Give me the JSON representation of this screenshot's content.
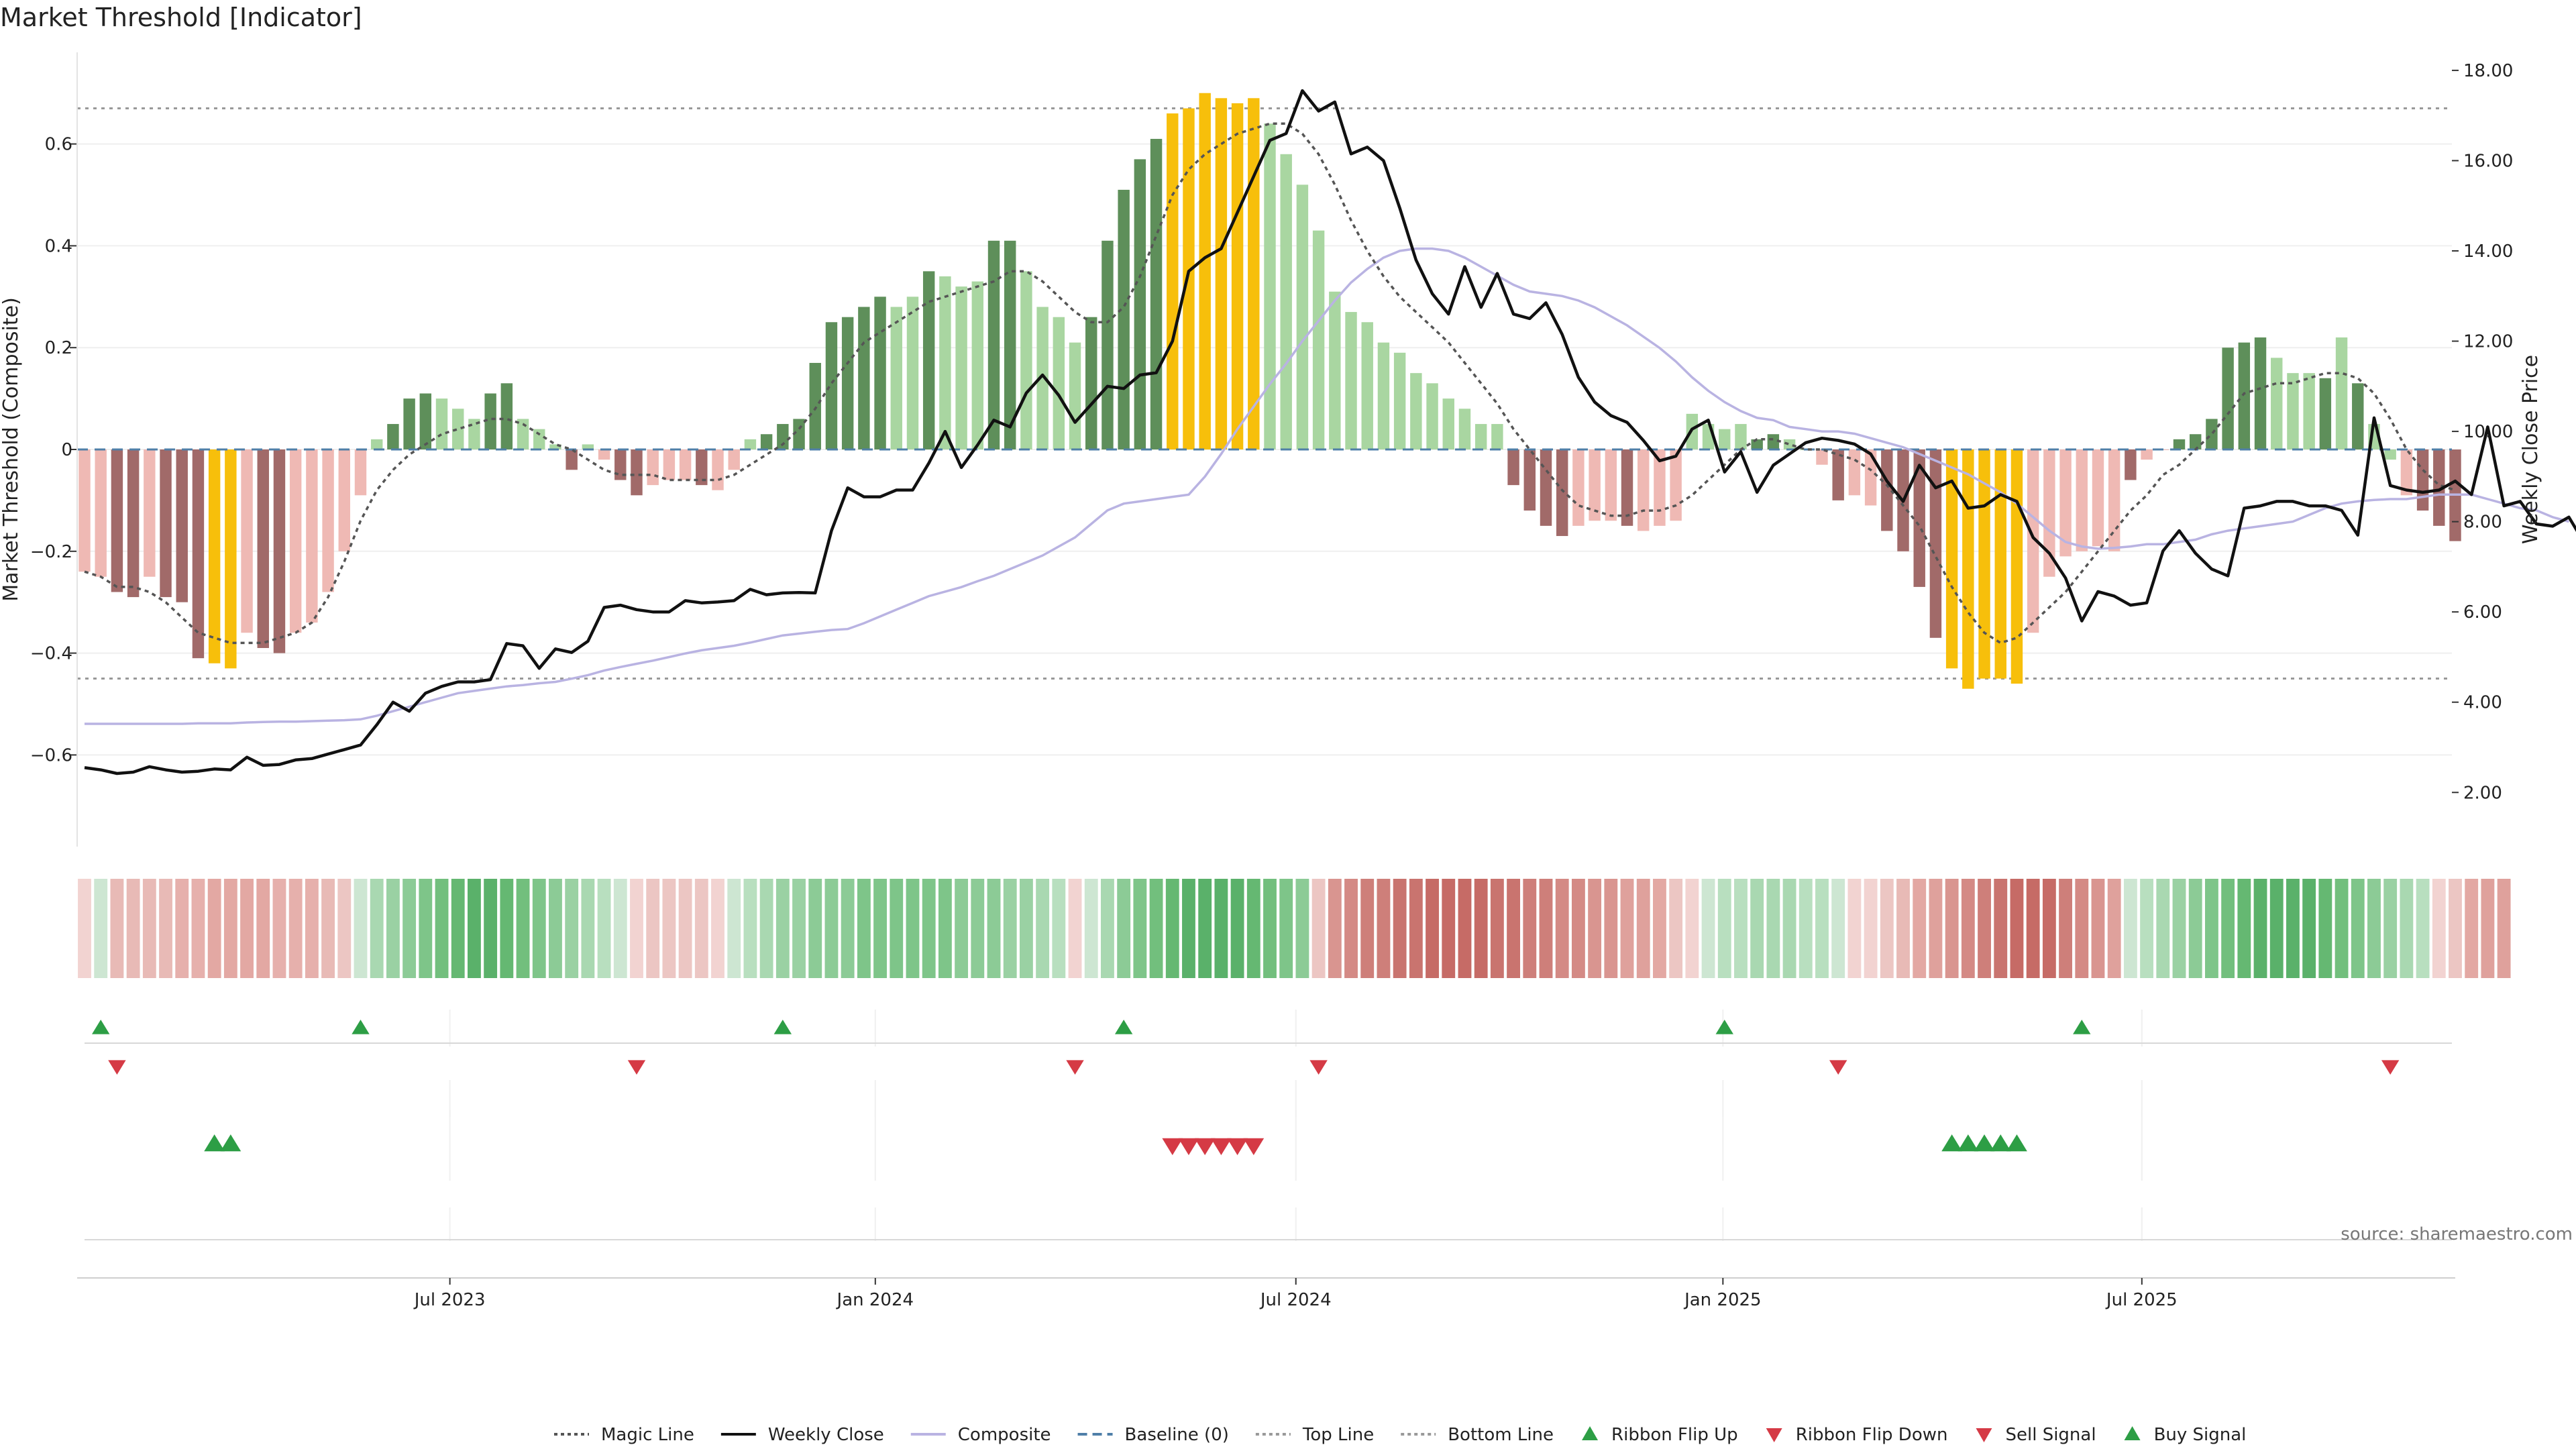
{
  "page": {
    "title": "Market Threshold [Indicator]",
    "source": "source: sharemaestro.com"
  },
  "chart_data": {
    "type": "bar",
    "title": "Market Threshold [Indicator]",
    "ylabel_left": "Market Threshold (Composite)",
    "ylabel_right": "Weekly Close Price",
    "ylim_left": [
      -0.78,
      0.78
    ],
    "ylim_right": [
      0.8,
      18.4
    ],
    "yticks_left": [
      -0.6,
      -0.4,
      -0.2,
      0,
      0.2,
      0.4,
      0.6
    ],
    "yticks_right": [
      2.0,
      4.0,
      6.0,
      8.0,
      10.0,
      12.0,
      14.0,
      16.0,
      18.0
    ],
    "yticks_left_labels": [
      "−0.6",
      "−0.4",
      "−0.2",
      "0",
      "0.2",
      "0.4",
      "0.6"
    ],
    "yticks_right_labels": [
      "2.00",
      "4.00",
      "6.00",
      "8.00",
      "10.00",
      "12.00",
      "14.00",
      "16.00",
      "18.00"
    ],
    "xticks": [
      {
        "label": "Jul 2023",
        "index": 22.5
      },
      {
        "label": "Jan 2024",
        "index": 48.7
      },
      {
        "label": "Jul 2024",
        "index": 74.6
      },
      {
        "label": "Jan 2025",
        "index": 100.9
      },
      {
        "label": "Jul 2025",
        "index": 126.7
      }
    ],
    "top_line": 0.67,
    "bottom_line": -0.45,
    "baseline": 0,
    "colors": {
      "pos_strong": "#5e8f5a",
      "pos_weak": "#a9d6a1",
      "neg_strong": "#a16a69",
      "neg_weak": "#efb9b4",
      "extreme": "#f7bf0b",
      "magic": "#555555",
      "close": "#111111",
      "composite": "#b9b3e2",
      "baseline": "#4f7fa8",
      "threshold": "#888888",
      "buy": "#2d9e45",
      "sell": "#d53a45"
    },
    "bars": [
      -0.24,
      -0.25,
      -0.28,
      -0.29,
      -0.25,
      -0.29,
      -0.3,
      -0.41,
      -0.42,
      -0.43,
      -0.36,
      -0.39,
      -0.4,
      -0.36,
      -0.34,
      -0.28,
      -0.2,
      -0.09,
      0.02,
      0.05,
      0.1,
      0.11,
      0.1,
      0.08,
      0.06,
      0.11,
      0.13,
      0.06,
      0.04,
      0.01,
      -0.04,
      0.01,
      -0.02,
      -0.06,
      -0.09,
      -0.07,
      -0.06,
      -0.06,
      -0.07,
      -0.08,
      -0.04,
      0.02,
      0.03,
      0.05,
      0.06,
      0.17,
      0.25,
      0.26,
      0.28,
      0.3,
      0.28,
      0.3,
      0.35,
      0.34,
      0.32,
      0.33,
      0.41,
      0.41,
      0.35,
      0.28,
      0.26,
      0.21,
      0.26,
      0.41,
      0.51,
      0.57,
      0.61,
      0.66,
      0.67,
      0.7,
      0.69,
      0.68,
      0.69,
      0.64,
      0.58,
      0.52,
      0.43,
      0.31,
      0.27,
      0.25,
      0.21,
      0.19,
      0.15,
      0.13,
      0.1,
      0.08,
      0.05,
      0.05,
      -0.07,
      -0.12,
      -0.15,
      -0.17,
      -0.15,
      -0.14,
      -0.14,
      -0.15,
      -0.16,
      -0.15,
      -0.14,
      0.07,
      0.05,
      0.04,
      0.05,
      0.02,
      0.03,
      0.02,
      0.0,
      -0.03,
      -0.1,
      -0.09,
      -0.11,
      -0.16,
      -0.2,
      -0.27,
      -0.37,
      -0.43,
      -0.47,
      -0.45,
      -0.45,
      -0.46,
      -0.36,
      -0.25,
      -0.21,
      -0.2,
      -0.19,
      -0.2,
      -0.06,
      -0.02,
      0.0,
      0.02,
      0.03,
      0.06,
      0.2,
      0.21,
      0.22,
      0.18,
      0.15,
      0.15,
      0.14,
      0.22,
      0.13,
      0.05,
      -0.02,
      -0.09,
      -0.12,
      -0.15,
      -0.18
    ],
    "bar_classes": [
      "nw",
      "nw",
      "ns",
      "ns",
      "nw",
      "ns",
      "ns",
      "ns",
      "ex",
      "ex",
      "nw",
      "ns",
      "ns",
      "nw",
      "nw",
      "nw",
      "nw",
      "nw",
      "pw",
      "ps",
      "ps",
      "ps",
      "pw",
      "pw",
      "pw",
      "ps",
      "ps",
      "pw",
      "pw",
      "pw",
      "ns",
      "pw",
      "nw",
      "ns",
      "ns",
      "nw",
      "nw",
      "nw",
      "ns",
      "nw",
      "nw",
      "pw",
      "ps",
      "ps",
      "ps",
      "ps",
      "ps",
      "ps",
      "ps",
      "ps",
      "pw",
      "pw",
      "ps",
      "pw",
      "pw",
      "pw",
      "ps",
      "ps",
      "pw",
      "pw",
      "pw",
      "pw",
      "ps",
      "ps",
      "ps",
      "ps",
      "ps",
      "ex",
      "ex",
      "ex",
      "ex",
      "ex",
      "ex",
      "pw",
      "pw",
      "pw",
      "pw",
      "pw",
      "pw",
      "pw",
      "pw",
      "pw",
      "pw",
      "pw",
      "pw",
      "pw",
      "pw",
      "pw",
      "ns",
      "ns",
      "ns",
      "ns",
      "nw",
      "nw",
      "nw",
      "ns",
      "nw",
      "nw",
      "nw",
      "pw",
      "pw",
      "pw",
      "pw",
      "ps",
      "ps",
      "pw",
      "pw",
      "nw",
      "ns",
      "nw",
      "nw",
      "ns",
      "ns",
      "ns",
      "ns",
      "ex",
      "ex",
      "ex",
      "ex",
      "ex",
      "nw",
      "nw",
      "nw",
      "nw",
      "nw",
      "nw",
      "ns",
      "nw",
      "nw",
      "ps",
      "ps",
      "ps",
      "ps",
      "ps",
      "ps",
      "pw",
      "pw",
      "pw",
      "ps",
      "pw",
      "ps",
      "pw",
      "pw",
      "nw",
      "ns",
      "ns",
      "ns",
      "ns"
    ],
    "magic_line": [
      -0.24,
      -0.25,
      -0.27,
      -0.27,
      -0.28,
      -0.3,
      -0.33,
      -0.36,
      -0.37,
      -0.38,
      -0.38,
      -0.38,
      -0.37,
      -0.36,
      -0.34,
      -0.29,
      -0.22,
      -0.14,
      -0.08,
      -0.04,
      -0.01,
      0.01,
      0.03,
      0.04,
      0.05,
      0.06,
      0.06,
      0.05,
      0.03,
      0.01,
      0.0,
      -0.02,
      -0.04,
      -0.05,
      -0.05,
      -0.05,
      -0.06,
      -0.06,
      -0.06,
      -0.06,
      -0.05,
      -0.03,
      -0.01,
      0.01,
      0.04,
      0.08,
      0.13,
      0.17,
      0.21,
      0.23,
      0.25,
      0.27,
      0.29,
      0.3,
      0.31,
      0.32,
      0.33,
      0.35,
      0.35,
      0.33,
      0.3,
      0.27,
      0.25,
      0.25,
      0.28,
      0.34,
      0.42,
      0.5,
      0.55,
      0.58,
      0.6,
      0.62,
      0.63,
      0.64,
      0.64,
      0.62,
      0.58,
      0.52,
      0.45,
      0.39,
      0.34,
      0.3,
      0.27,
      0.24,
      0.21,
      0.17,
      0.13,
      0.09,
      0.04,
      0.0,
      -0.04,
      -0.08,
      -0.11,
      -0.12,
      -0.13,
      -0.13,
      -0.12,
      -0.12,
      -0.11,
      -0.09,
      -0.06,
      -0.03,
      0.0,
      0.02,
      0.02,
      0.01,
      0.0,
      0.0,
      -0.01,
      -0.02,
      -0.04,
      -0.07,
      -0.11,
      -0.15,
      -0.21,
      -0.27,
      -0.32,
      -0.36,
      -0.38,
      -0.37,
      -0.34,
      -0.31,
      -0.28,
      -0.24,
      -0.2,
      -0.16,
      -0.12,
      -0.09,
      -0.05,
      -0.03,
      0.0,
      0.03,
      0.07,
      0.11,
      0.12,
      0.13,
      0.13,
      0.14,
      0.15,
      0.15,
      0.14,
      0.11,
      0.06,
      0.0,
      -0.04,
      -0.07,
      -0.08
    ],
    "composite": [
      3.52,
      3.52,
      3.52,
      3.52,
      3.52,
      3.52,
      3.52,
      3.53,
      3.53,
      3.53,
      3.55,
      3.56,
      3.57,
      3.57,
      3.58,
      3.59,
      3.6,
      3.62,
      3.7,
      3.8,
      3.9,
      4.0,
      4.1,
      4.2,
      4.25,
      4.3,
      4.35,
      4.38,
      4.42,
      4.45,
      4.52,
      4.6,
      4.7,
      4.78,
      4.85,
      4.92,
      5.0,
      5.08,
      5.15,
      5.2,
      5.25,
      5.32,
      5.4,
      5.48,
      5.52,
      5.56,
      5.6,
      5.62,
      5.75,
      5.9,
      6.05,
      6.2,
      6.35,
      6.45,
      6.55,
      6.68,
      6.8,
      6.95,
      7.1,
      7.25,
      7.45,
      7.65,
      7.95,
      8.25,
      8.4,
      8.45,
      8.5,
      8.55,
      8.6,
      9.0,
      9.5,
      10.05,
      10.55,
      11.05,
      11.5,
      12.0,
      12.45,
      12.9,
      13.3,
      13.6,
      13.85,
      14.0,
      14.05,
      14.05,
      14.0,
      13.85,
      13.65,
      13.45,
      13.25,
      13.1,
      13.05,
      13.0,
      12.9,
      12.75,
      12.55,
      12.35,
      12.1,
      11.85,
      11.55,
      11.2,
      10.9,
      10.65,
      10.45,
      10.3,
      10.25,
      10.1,
      10.05,
      10.0,
      10.0,
      9.95,
      9.85,
      9.75,
      9.65,
      9.5,
      9.35,
      9.2,
      9.05,
      8.85,
      8.65,
      8.4,
      8.1,
      7.8,
      7.55,
      7.45,
      7.4,
      7.42,
      7.45,
      7.5,
      7.5,
      7.55,
      7.6,
      7.72,
      7.8,
      7.85,
      7.9,
      7.95,
      8.0,
      8.15,
      8.3,
      8.4,
      8.45,
      8.48,
      8.5,
      8.5,
      8.55,
      8.6,
      8.6,
      8.6,
      8.5,
      8.4,
      8.3,
      8.25,
      8.1,
      8.0
    ],
    "weekly_close": [
      2.55,
      2.5,
      2.42,
      2.45,
      2.57,
      2.5,
      2.45,
      2.47,
      2.52,
      2.5,
      2.78,
      2.6,
      2.62,
      2.72,
      2.75,
      2.85,
      2.95,
      3.05,
      3.5,
      4.0,
      3.8,
      4.2,
      4.35,
      4.45,
      4.45,
      4.5,
      5.3,
      5.25,
      4.75,
      5.18,
      5.1,
      5.35,
      6.1,
      6.15,
      6.05,
      6.0,
      6.0,
      6.25,
      6.2,
      6.22,
      6.25,
      6.5,
      6.38,
      6.42,
      6.43,
      6.42,
      7.8,
      8.75,
      8.55,
      8.55,
      8.7,
      8.7,
      9.3,
      10.0,
      9.2,
      9.7,
      10.25,
      10.1,
      10.85,
      11.25,
      10.8,
      10.2,
      10.6,
      11.0,
      10.95,
      11.25,
      11.3,
      12.0,
      13.55,
      13.85,
      14.05,
      14.85,
      15.65,
      16.45,
      16.6,
      17.55,
      17.1,
      17.3,
      16.15,
      16.3,
      16.0,
      14.95,
      13.8,
      13.05,
      12.6,
      13.65,
      12.75,
      13.5,
      12.6,
      12.5,
      12.85,
      12.15,
      11.2,
      10.65,
      10.35,
      10.2,
      9.8,
      9.35,
      9.45,
      10.05,
      10.25,
      9.1,
      9.55,
      8.65,
      9.25,
      9.5,
      9.75,
      9.85,
      9.8,
      9.72,
      9.5,
      8.9,
      8.45,
      9.25,
      8.75,
      8.9,
      8.3,
      8.35,
      8.6,
      8.45,
      7.65,
      7.3,
      6.75,
      5.8,
      6.45,
      6.35,
      6.15,
      6.2,
      7.35,
      7.8,
      7.3,
      6.95,
      6.8,
      8.3,
      8.35,
      8.45,
      8.45,
      8.35,
      8.35,
      8.25,
      7.7,
      10.3,
      8.8,
      8.7,
      8.65,
      8.7,
      8.9,
      8.6,
      10.1,
      8.35,
      8.45,
      7.95,
      7.9,
      8.1,
      7.5,
      7.35
    ],
    "ribbon_colors": [
      "#f2d3d1",
      "#cde6d2",
      "#e8bab6",
      "#e8bab6",
      "#e8bab6",
      "#e8bab6",
      "#e6b0ac",
      "#e6b0ac",
      "#e3a8a3",
      "#e3a8a3",
      "#e3a8a3",
      "#e3a8a3",
      "#e6b0ac",
      "#e6b0ac",
      "#e6b0ac",
      "#e8bab6",
      "#ecc6c3",
      "#cde6d2",
      "#a9d8b1",
      "#9ad1a3",
      "#8ccb96",
      "#7ec589",
      "#72bf7d",
      "#65b872",
      "#5ab16a",
      "#5ab16a",
      "#65b872",
      "#72bf7d",
      "#7ec589",
      "#8ccb96",
      "#9ad1a3",
      "#a9d8b1",
      "#b8dfbf",
      "#cde6d2",
      "#f2d3d1",
      "#ecc6c3",
      "#ecc6c3",
      "#ecc6c3",
      "#ecc6c3",
      "#f2d3d1",
      "#cde6d2",
      "#b8dfbf",
      "#a9d8b1",
      "#9ad1a3",
      "#9ad1a3",
      "#8ccb96",
      "#8ccb96",
      "#8ccb96",
      "#7ec589",
      "#7ec589",
      "#7ec589",
      "#7ec589",
      "#7ec589",
      "#7ec589",
      "#8ccb96",
      "#8ccb96",
      "#8ccb96",
      "#9ad1a3",
      "#9ad1a3",
      "#a9d8b1",
      "#b8dfbf",
      "#f2d3d1",
      "#cde6d2",
      "#a9d8b1",
      "#8ccb96",
      "#7ec589",
      "#72bf7d",
      "#65b872",
      "#5ab16a",
      "#5ab16a",
      "#5ab16a",
      "#5ab16a",
      "#65b872",
      "#72bf7d",
      "#7ec589",
      "#8ccb96",
      "#ecc6c3",
      "#d99590",
      "#d48a85",
      "#ce7f7a",
      "#ce7f7a",
      "#c9746f",
      "#c9746f",
      "#c66b66",
      "#c66b66",
      "#c66b66",
      "#c66b66",
      "#c9746f",
      "#c9746f",
      "#ce7f7a",
      "#ce7f7a",
      "#d48a85",
      "#d48a85",
      "#d99590",
      "#d99590",
      "#dfa19c",
      "#dfa19c",
      "#e3a8a3",
      "#ecc6c3",
      "#f2d3d1",
      "#cde6d2",
      "#b8dfbf",
      "#b8dfbf",
      "#a9d8b1",
      "#a9d8b1",
      "#a9d8b1",
      "#b8dfbf",
      "#b8dfbf",
      "#cde6d2",
      "#f2d3d1",
      "#f2d3d1",
      "#ecc6c3",
      "#e8bab6",
      "#e3a8a3",
      "#dfa19c",
      "#d99590",
      "#d48a85",
      "#ce7f7a",
      "#c9746f",
      "#c66b66",
      "#c66b66",
      "#c66b66",
      "#ce7f7a",
      "#d48a85",
      "#d99590",
      "#dfa19c",
      "#cde6d2",
      "#b8dfbf",
      "#a9d8b1",
      "#9ad1a3",
      "#8ccb96",
      "#7ec589",
      "#72bf7d",
      "#65b872",
      "#5ab16a",
      "#5ab16a",
      "#5ab16a",
      "#5ab16a",
      "#65b872",
      "#72bf7d",
      "#7ec589",
      "#8ccb96",
      "#9ad1a3",
      "#a9d8b1",
      "#b8dfbf",
      "#f2d3d1",
      "#ecc6c3",
      "#e3a8a3",
      "#dfa19c",
      "#dfa19c"
    ],
    "ribbon_flip_up": [
      1,
      17,
      43,
      64,
      101,
      123
    ],
    "ribbon_flip_down": [
      2,
      34,
      61,
      76,
      108,
      142
    ],
    "sell_signals": [
      67,
      68,
      69,
      70,
      71,
      72
    ],
    "buy_signals": [
      8,
      9,
      115,
      116,
      117,
      118,
      119
    ],
    "legend": [
      {
        "label": "Magic Line",
        "kind": "line",
        "style": "dotted",
        "color": "#555555"
      },
      {
        "label": "Weekly Close",
        "kind": "line",
        "style": "solid",
        "color": "#111111"
      },
      {
        "label": "Composite",
        "kind": "line",
        "style": "solid",
        "color": "#b9b3e2"
      },
      {
        "label": "Baseline (0)",
        "kind": "line",
        "style": "dashed",
        "color": "#4f7fa8"
      },
      {
        "label": "Top Line",
        "kind": "line",
        "style": "dotted",
        "color": "#999999"
      },
      {
        "label": "Bottom Line",
        "kind": "line",
        "style": "dotted",
        "color": "#999999"
      },
      {
        "label": "Ribbon Flip Up",
        "kind": "marker",
        "style": "up",
        "color": "#2d9e45"
      },
      {
        "label": "Ribbon Flip Down",
        "kind": "marker",
        "style": "down",
        "color": "#d53a45"
      },
      {
        "label": "Sell Signal",
        "kind": "marker",
        "style": "down",
        "color": "#d53a45"
      },
      {
        "label": "Buy Signal",
        "kind": "marker",
        "style": "up",
        "color": "#2d9e45"
      }
    ]
  }
}
